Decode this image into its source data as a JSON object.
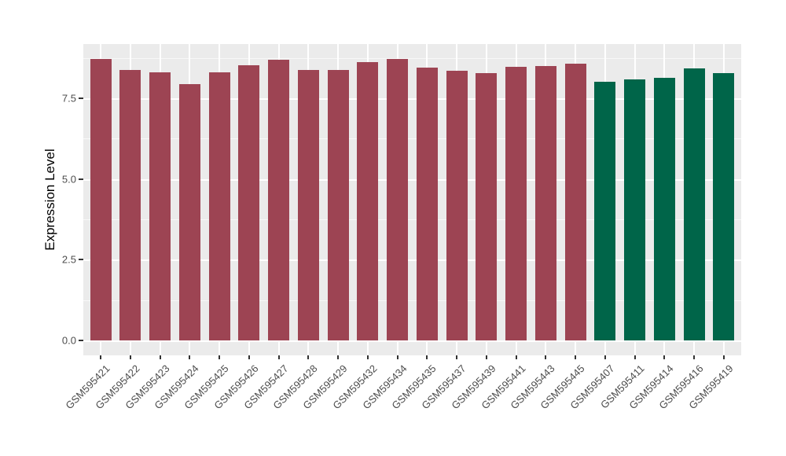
{
  "figure": {
    "background_color": "#FFFFFF",
    "panel_background_color": "#EBEBEB",
    "grid_major_color": "#FFFFFF",
    "grid_minor_color": "#F7F7F7",
    "axis_text_color": "#4D4D4D",
    "axis_title_color": "#000000",
    "tick_mark_color": "#333333",
    "bar_color_group1": "#9D4453",
    "bar_color_group2": "#006549"
  },
  "chart_data": {
    "type": "bar",
    "title": "",
    "xlabel": "",
    "ylabel": "Expression Level",
    "legend": "none",
    "grid": "on",
    "ylim": [
      0,
      9.18
    ],
    "yticks": [
      0,
      2.5,
      5.0,
      7.5
    ],
    "ytick_labels": [
      "0.0",
      "2.5",
      "5.0",
      "7.5"
    ],
    "yticks_minor": [
      1.25,
      3.75,
      6.25,
      8.75
    ],
    "categories": [
      "GSM595421",
      "GSM595422",
      "GSM595423",
      "GSM595424",
      "GSM595425",
      "GSM595426",
      "GSM595427",
      "GSM595428",
      "GSM595429",
      "GSM595432",
      "GSM595434",
      "GSM595435",
      "GSM595437",
      "GSM595439",
      "GSM595441",
      "GSM595443",
      "GSM595445",
      "GSM595407",
      "GSM595411",
      "GSM595414",
      "GSM595416",
      "GSM595419"
    ],
    "values": [
      8.72,
      8.38,
      8.3,
      7.94,
      8.31,
      8.53,
      8.69,
      8.37,
      8.38,
      8.63,
      8.71,
      8.46,
      8.35,
      8.29,
      8.47,
      8.51,
      8.58,
      8.0,
      8.08,
      8.13,
      8.43,
      8.27
    ],
    "bar_colors": [
      "#9D4453",
      "#9D4453",
      "#9D4453",
      "#9D4453",
      "#9D4453",
      "#9D4453",
      "#9D4453",
      "#9D4453",
      "#9D4453",
      "#9D4453",
      "#9D4453",
      "#9D4453",
      "#9D4453",
      "#9D4453",
      "#9D4453",
      "#9D4453",
      "#9D4453",
      "#006549",
      "#006549",
      "#006549",
      "#006549",
      "#006549"
    ]
  }
}
